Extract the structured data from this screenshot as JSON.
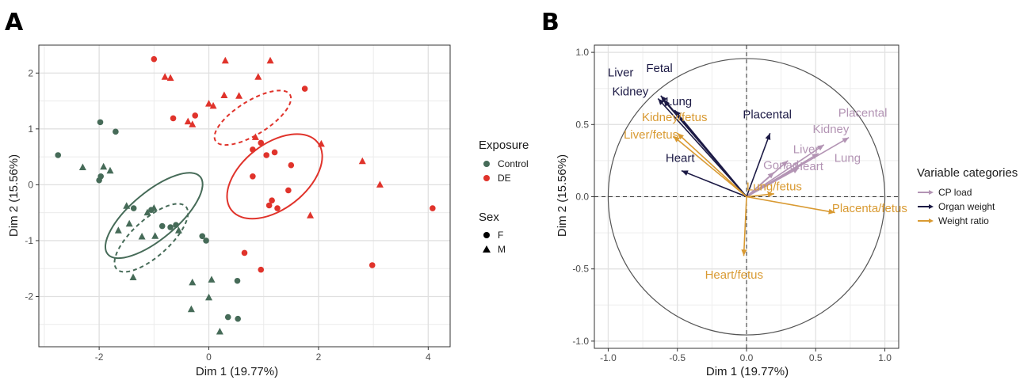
{
  "panels": {
    "a": "A",
    "b": "B"
  },
  "colors": {
    "control": "#466b58",
    "de": "#e0332b",
    "cp_load": "#b394b4",
    "organ_weight": "#1c1a45",
    "weight_ratio": "#d99a32"
  },
  "chart_data": [
    {
      "type": "scatter",
      "xlabel": "Dim 1 (19.77%)",
      "ylabel": "Dim 2 (15.56%)",
      "xlim": [
        -3.1,
        4.4
      ],
      "ylim": [
        -2.9,
        2.5
      ],
      "xticks": [
        -2,
        0,
        2,
        4
      ],
      "yticks": [
        -2,
        -1,
        0,
        1,
        2
      ],
      "grid": true,
      "legend": {
        "position": "right",
        "exposure_title": "Exposure",
        "exposure_items": [
          "Control",
          "DE"
        ],
        "sex_title": "Sex",
        "sex_items": [
          "F",
          "M"
        ]
      },
      "series": [
        {
          "name": "Control",
          "sex": "F",
          "points": [
            [
              -2.75,
              0.53
            ],
            [
              -1.98,
              1.12
            ],
            [
              -2.0,
              0.08
            ],
            [
              -1.97,
              0.15
            ],
            [
              -1.7,
              0.95
            ],
            [
              -1.37,
              -0.42
            ],
            [
              -1.05,
              -0.45
            ],
            [
              -0.85,
              -0.74
            ],
            [
              -0.7,
              -0.76
            ],
            [
              -0.6,
              -0.72
            ],
            [
              -0.12,
              -0.92
            ],
            [
              -0.05,
              -1.0
            ],
            [
              0.52,
              -1.72
            ],
            [
              0.35,
              -2.37
            ],
            [
              0.53,
              -2.4
            ]
          ]
        },
        {
          "name": "Control",
          "sex": "M",
          "points": [
            [
              -2.3,
              0.31
            ],
            [
              -1.92,
              0.32
            ],
            [
              -1.8,
              0.25
            ],
            [
              -1.65,
              -0.82
            ],
            [
              -1.45,
              -0.7
            ],
            [
              -1.5,
              -0.38
            ],
            [
              -1.38,
              -1.66
            ],
            [
              -1.22,
              -0.93
            ],
            [
              -1.12,
              -0.5
            ],
            [
              -1.0,
              -0.42
            ],
            [
              -0.98,
              -0.92
            ],
            [
              -0.55,
              -0.82
            ],
            [
              -0.3,
              -1.75
            ],
            [
              0.05,
              -1.7
            ],
            [
              0.0,
              -2.02
            ],
            [
              -0.32,
              -2.23
            ],
            [
              0.2,
              -2.63
            ]
          ]
        },
        {
          "name": "DE",
          "sex": "F",
          "points": [
            [
              -1.0,
              2.25
            ],
            [
              -0.65,
              1.19
            ],
            [
              -0.25,
              1.24
            ],
            [
              0.8,
              0.63
            ],
            [
              0.95,
              0.75
            ],
            [
              1.05,
              0.53
            ],
            [
              1.2,
              0.58
            ],
            [
              1.5,
              0.35
            ],
            [
              0.8,
              0.15
            ],
            [
              1.45,
              -0.1
            ],
            [
              1.15,
              -0.28
            ],
            [
              1.25,
              -0.42
            ],
            [
              1.1,
              -0.37
            ],
            [
              0.65,
              -1.22
            ],
            [
              0.95,
              -1.52
            ],
            [
              1.75,
              1.72
            ],
            [
              2.98,
              -1.44
            ],
            [
              4.08,
              -0.42
            ]
          ]
        },
        {
          "name": "DE",
          "sex": "M",
          "points": [
            [
              -0.8,
              1.93
            ],
            [
              -0.7,
              1.91
            ],
            [
              -0.38,
              1.13
            ],
            [
              -0.3,
              1.08
            ],
            [
              0.0,
              1.45
            ],
            [
              0.08,
              1.41
            ],
            [
              0.28,
              1.6
            ],
            [
              0.3,
              2.22
            ],
            [
              0.55,
              1.59
            ],
            [
              0.85,
              0.85
            ],
            [
              0.9,
              1.93
            ],
            [
              1.12,
              2.22
            ],
            [
              2.05,
              0.73
            ],
            [
              2.8,
              0.42
            ],
            [
              3.12,
              0.0
            ],
            [
              1.85,
              -0.55
            ]
          ]
        }
      ],
      "ellipses": [
        {
          "group": "Control",
          "sex": "F",
          "style": "solid",
          "cx": -1.0,
          "cy": -0.55,
          "rx": 1.1,
          "ry": 0.42,
          "angle_deg": -40
        },
        {
          "group": "Control",
          "sex": "M",
          "style": "dashed",
          "cx": -1.05,
          "cy": -0.95,
          "rx": 0.85,
          "ry": 0.33,
          "angle_deg": -42
        },
        {
          "group": "DE",
          "sex": "F",
          "style": "solid",
          "cx": 1.2,
          "cy": 0.15,
          "rx": 1.0,
          "ry": 0.58,
          "angle_deg": -38
        },
        {
          "group": "DE",
          "sex": "M",
          "style": "dashed",
          "cx": 0.8,
          "cy": 1.2,
          "rx": 0.8,
          "ry": 0.3,
          "angle_deg": -32
        }
      ]
    },
    {
      "type": "scatter",
      "subtype": "pca-correlation-circle",
      "xlabel": "Dim 1 (19.77%)",
      "ylabel": "Dim 2 (15.56%)",
      "xlim": [
        -1.1,
        1.1
      ],
      "ylim": [
        -1.05,
        1.05
      ],
      "xticks": [
        -1.0,
        -0.5,
        0.0,
        0.5,
        1.0
      ],
      "xtick_labels": [
        "-1.0",
        "-0.5",
        "0.0",
        "0.5",
        "1.0"
      ],
      "yticks": [
        -1.0,
        -0.5,
        0.0,
        0.5,
        1.0
      ],
      "ytick_labels": [
        "-1.0",
        "-0.5",
        "0.0",
        "0.5",
        "1.0"
      ],
      "grid": true,
      "legend": {
        "position": "right",
        "title": "Variable categories",
        "items": [
          "CP load",
          "Organ weight",
          "Weight ratio"
        ]
      },
      "arrows": [
        {
          "category": "CP load",
          "x": 0.74,
          "y": 0.41
        },
        {
          "category": "CP load",
          "x": 0.56,
          "y": 0.36
        },
        {
          "category": "CP load",
          "x": 0.52,
          "y": 0.3
        },
        {
          "category": "CP load",
          "x": 0.3,
          "y": 0.25
        },
        {
          "category": "CP load",
          "x": 0.38,
          "y": 0.2
        },
        {
          "category": "CP load",
          "x": 0.2,
          "y": 0.17
        },
        {
          "category": "Organ weight",
          "x": -0.62,
          "y": 0.7
        },
        {
          "category": "Organ weight",
          "x": -0.64,
          "y": 0.68
        },
        {
          "category": "Organ weight",
          "x": -0.6,
          "y": 0.67
        },
        {
          "category": "Organ weight",
          "x": -0.52,
          "y": 0.6
        },
        {
          "category": "Organ weight",
          "x": 0.17,
          "y": 0.44
        },
        {
          "category": "Organ weight",
          "x": -0.47,
          "y": 0.18
        },
        {
          "category": "Weight ratio",
          "x": -0.5,
          "y": 0.44
        },
        {
          "category": "Weight ratio",
          "x": -0.53,
          "y": 0.42
        },
        {
          "category": "Weight ratio",
          "x": 0.2,
          "y": 0.02
        },
        {
          "category": "Weight ratio",
          "x": 0.64,
          "y": -0.11
        },
        {
          "category": "Weight ratio",
          "x": -0.02,
          "y": -0.41
        }
      ],
      "labels": [
        {
          "text": "Placental",
          "category": "CP load",
          "x": 0.84,
          "y": 0.58
        },
        {
          "text": "Kidney",
          "category": "CP load",
          "x": 0.61,
          "y": 0.47
        },
        {
          "text": "Liver",
          "category": "CP load",
          "x": 0.43,
          "y": 0.33
        },
        {
          "text": "Lung",
          "category": "CP load",
          "x": 0.73,
          "y": 0.27
        },
        {
          "text": "Gonad",
          "category": "CP load",
          "x": 0.25,
          "y": 0.22
        },
        {
          "text": "Heart",
          "category": "CP load",
          "x": 0.45,
          "y": 0.21
        },
        {
          "text": "Fetal",
          "category": "Organ weight",
          "x": -0.63,
          "y": 0.89
        },
        {
          "text": "Liver",
          "category": "Organ weight",
          "x": -0.91,
          "y": 0.86
        },
        {
          "text": "Kidney",
          "category": "Organ weight",
          "x": -0.84,
          "y": 0.73
        },
        {
          "text": "Lung",
          "category": "Organ weight",
          "x": -0.49,
          "y": 0.66
        },
        {
          "text": "Placental",
          "category": "Organ weight",
          "x": 0.15,
          "y": 0.57
        },
        {
          "text": "Heart",
          "category": "Organ weight",
          "x": -0.48,
          "y": 0.27
        },
        {
          "text": "Kidney/fetus",
          "category": "Weight ratio",
          "x": -0.52,
          "y": 0.55
        },
        {
          "text": "Liver/fetus",
          "category": "Weight ratio",
          "x": -0.69,
          "y": 0.43
        },
        {
          "text": "Lung/fetus",
          "category": "Weight ratio",
          "x": 0.2,
          "y": 0.07
        },
        {
          "text": "Placenta/fetus",
          "category": "Weight ratio",
          "x": 0.89,
          "y": -0.08
        },
        {
          "text": "Heart/fetus",
          "category": "Weight ratio",
          "x": -0.09,
          "y": -0.54
        }
      ]
    }
  ]
}
